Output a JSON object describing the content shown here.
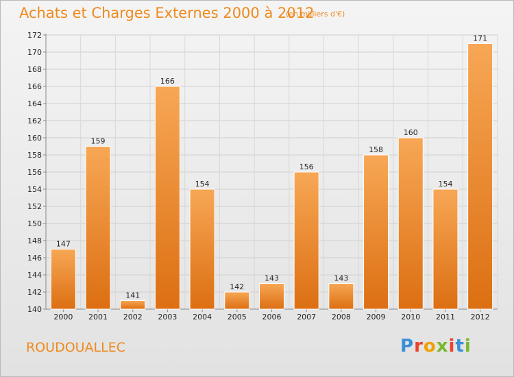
{
  "header": {
    "title": "Achats et Charges Externes 2000 à 2012",
    "unit": "(en milliers d'€)"
  },
  "footer": {
    "commune": "ROUDOUALLEC",
    "logo": "Proxiti",
    "logo_colors": [
      "#3a8fd8",
      "#e8452c",
      "#f2a000",
      "#79b82c",
      "#e8452c",
      "#3a8fd8",
      "#79b82c"
    ]
  },
  "chart_data": {
    "type": "bar",
    "title": "Achats et Charges Externes 2000 à 2012",
    "subtitle": "(en milliers d'€)",
    "xlabel": "",
    "ylabel": "",
    "categories": [
      "2000",
      "2001",
      "2002",
      "2003",
      "2004",
      "2005",
      "2006",
      "2007",
      "2008",
      "2009",
      "2010",
      "2011",
      "2012"
    ],
    "values": [
      147,
      159,
      141,
      166,
      154,
      142,
      143,
      156,
      143,
      158,
      160,
      154,
      171
    ],
    "ylim": [
      140,
      172
    ],
    "yticks": [
      140,
      142,
      144,
      146,
      148,
      150,
      152,
      154,
      156,
      158,
      160,
      162,
      164,
      166,
      168,
      170,
      172
    ],
    "grid": true,
    "bar_color": "#f0923a",
    "data_labels": true
  }
}
